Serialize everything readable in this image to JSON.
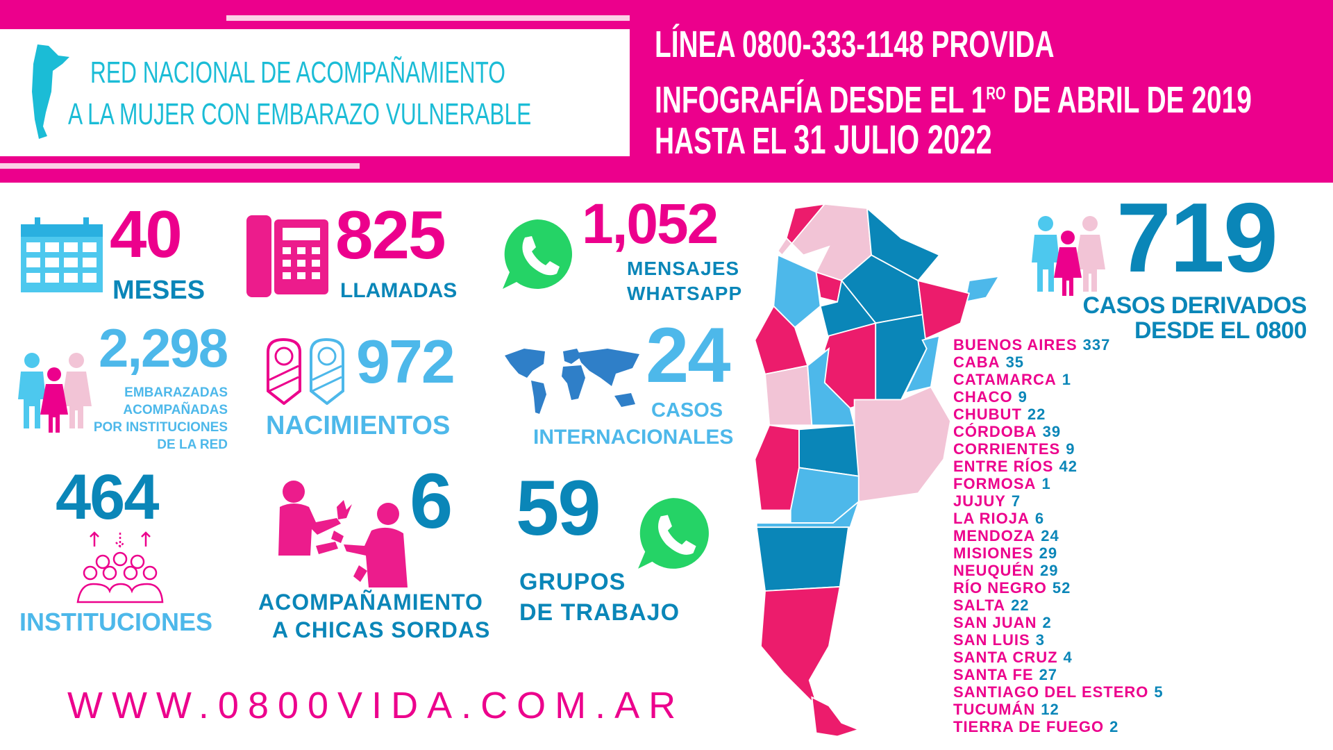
{
  "header": {
    "org_line1": "RED NACIONAL DE ACOMPAÑAMIENTO",
    "org_line2": "A LA MUJER CON EMBARAZO VULNERABLE",
    "title_line1": "LÍNEA 0800-333-1148 PROVIDA",
    "title_line2_a": "INFOGRAFÍA DESDE EL 1",
    "title_line2_sup": "RO",
    "title_line2_b": " DE ABRIL DE  2019",
    "title_line3_a": "HASTA EL ",
    "title_line3_b": "31 JULIO 2022"
  },
  "stats": {
    "months": {
      "value": "40",
      "label": "MESES",
      "icon": "calendar-icon"
    },
    "calls": {
      "value": "825",
      "label": "LLAMADAS",
      "icon": "phone-icon"
    },
    "whatsapp": {
      "value": "1,052",
      "label1": "MENSAJES",
      "label2": "WHATSAPP",
      "icon": "whatsapp-icon"
    },
    "pregnant": {
      "value": "2,298",
      "label1": "EMBARAZADAS",
      "label2": "ACOMPAÑADAS",
      "label3": "POR INSTITUCIONES",
      "label4": "DE LA RED",
      "icon": "family-icon"
    },
    "births": {
      "value": "972",
      "label": "NACIMIENTOS",
      "icon": "babies-icon"
    },
    "international": {
      "value": "24",
      "label1": "CASOS",
      "label2": "INTERNACIONALES",
      "icon": "world-map-icon"
    },
    "institutions": {
      "value": "464",
      "label": "INSTITUCIONES",
      "icon": "people-group-icon"
    },
    "deaf": {
      "value": "6",
      "label1": "ACOMPAÑAMIENTO",
      "label2": "A CHICAS SORDAS",
      "icon": "sign-language-icon"
    },
    "groups": {
      "value": "59",
      "label1": "GRUPOS",
      "label2": "DE TRABAJO",
      "icon": "whatsapp-icon"
    },
    "derived": {
      "value": "719",
      "label1": "CASOS DERIVADOS",
      "label2": "DESDE EL 0800",
      "icon": "family-icon"
    }
  },
  "provinces": [
    {
      "name": "BUENOS AIRES",
      "count": "337"
    },
    {
      "name": "CABA",
      "count": "35"
    },
    {
      "name": "CATAMARCA",
      "count": "1"
    },
    {
      "name": "CHACO",
      "count": "9"
    },
    {
      "name": "CHUBUT",
      "count": "22"
    },
    {
      "name": "CÓRDOBA",
      "count": "39"
    },
    {
      "name": "CORRIENTES",
      "count": "9"
    },
    {
      "name": "ENTRE RÍOS",
      "count": "42"
    },
    {
      "name": "FORMOSA",
      "count": "1"
    },
    {
      "name": "JUJUY",
      "count": "7"
    },
    {
      "name": "LA RIOJA",
      "count": "6"
    },
    {
      "name": "MENDOZA",
      "count": "24"
    },
    {
      "name": "MISIONES",
      "count": "29"
    },
    {
      "name": "NEUQUÉN",
      "count": "29"
    },
    {
      "name": "RÍO NEGRO",
      "count": "52"
    },
    {
      "name": "SALTA",
      "count": "22"
    },
    {
      "name": "SAN JUAN",
      "count": "2"
    },
    {
      "name": "SAN LUIS",
      "count": "3"
    },
    {
      "name": "SANTA CRUZ",
      "count": "4"
    },
    {
      "name": "SANTA FE",
      "count": "27"
    },
    {
      "name": "SANTIAGO DEL ESTERO",
      "count": "5"
    },
    {
      "name": "TUCUMÁN",
      "count": "12"
    },
    {
      "name": "TIERRA DE FUEGO",
      "count": "2"
    }
  ],
  "url": "WWW.0800VIDA.COM.AR",
  "colors": {
    "pink": "#ec008c",
    "dark_blue": "#0a86b8",
    "light_blue": "#4db8ea",
    "light_pink": "#f2c4d6",
    "cyan": "#1bbcd6",
    "whatsapp_green": "#25d366"
  }
}
